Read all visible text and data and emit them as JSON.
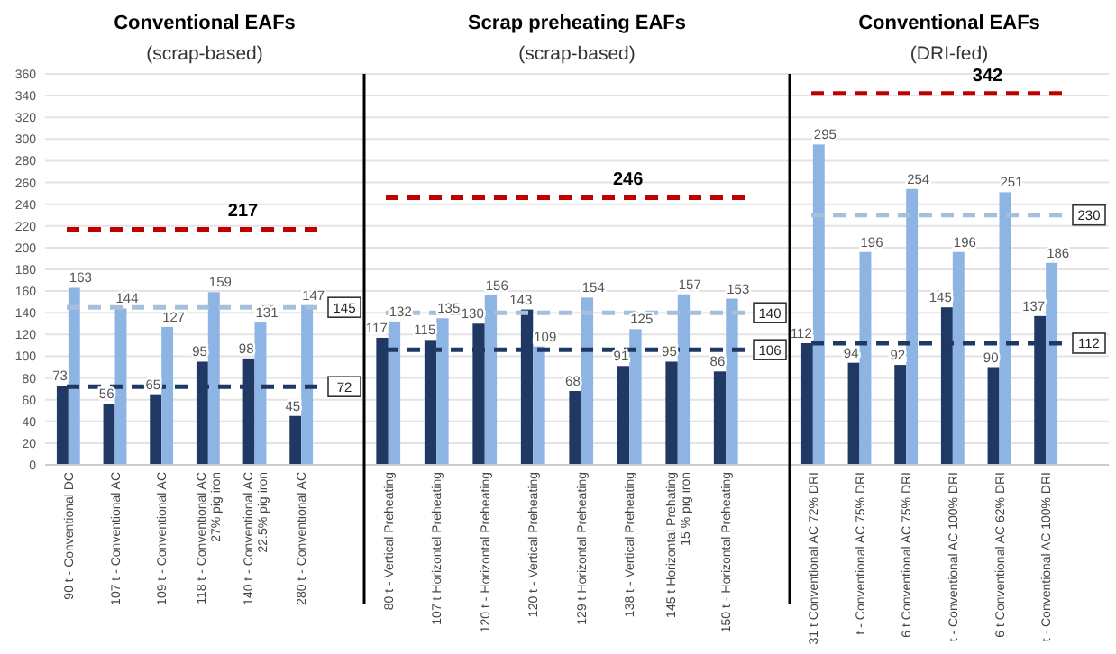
{
  "chart_data": [
    {
      "type": "bar",
      "title": "Conventional EAFs",
      "subtitle": "(scrap-based)",
      "categories": [
        "90 t - Conventional DC",
        "107 t - Conventional AC",
        "109 t - Conventional AC",
        "118 t - Conventional AC\n27% pig iron",
        "140 t - Conventional AC\n22.5% pig iron",
        "280 t - Conventional AC"
      ],
      "series": [
        {
          "color": "#1f3864",
          "values": [
            73,
            56,
            65,
            95,
            98,
            45
          ]
        },
        {
          "color": "#8eb4e3",
          "values": [
            163,
            144,
            127,
            159,
            131,
            147
          ]
        }
      ],
      "ylim": [
        0,
        360
      ],
      "yticks": [
        0,
        20,
        40,
        60,
        80,
        100,
        120,
        140,
        160,
        180,
        200,
        220,
        240,
        260,
        280,
        300,
        320,
        340,
        360
      ],
      "grid": "y",
      "data_labels": true,
      "ref_lines": [
        {
          "axis": "y",
          "value": 217,
          "label": "217",
          "color": "#c00000",
          "line_style": "dashed"
        },
        {
          "axis": "y",
          "value": 145,
          "label": "145",
          "color": "#a6bfdc",
          "line_style": "dashed"
        },
        {
          "axis": "y",
          "value": 72,
          "label": "72",
          "color": "#1f3864",
          "line_style": "dashed"
        }
      ]
    },
    {
      "type": "bar",
      "title": "Scrap preheating EAFs",
      "subtitle": "(scrap-based)",
      "categories": [
        "80 t - Vertical Preheating",
        "107 t Horizontel Preheating",
        "120 t - Horizontal Preheating",
        "120 t - Vertical Preheating",
        "129 t Horizontal Preheating",
        "138 t - Vertical Preheating",
        "145 t Horizontal Prehating\n15 % pig iron",
        "150 t - Horizontal Preheating"
      ],
      "series": [
        {
          "color": "#1f3864",
          "values": [
            117,
            115,
            130,
            143,
            68,
            91,
            95,
            86
          ]
        },
        {
          "color": "#8eb4e3",
          "values": [
            132,
            135,
            156,
            109,
            154,
            125,
            157,
            153
          ]
        }
      ],
      "ylim": [
        0,
        360
      ],
      "yticks": [
        0,
        20,
        40,
        60,
        80,
        100,
        120,
        140,
        160,
        180,
        200,
        220,
        240,
        260,
        280,
        300,
        320,
        340,
        360
      ],
      "grid": "y",
      "data_labels": true,
      "tick_labels": "x",
      "ref_lines": [
        {
          "axis": "y",
          "value": 246,
          "label": "246",
          "color": "#c00000",
          "line_style": "dashed"
        },
        {
          "axis": "y",
          "value": 140,
          "label": "140",
          "color": "#a6bfdc",
          "line_style": "dashed"
        },
        {
          "axis": "y",
          "value": 106,
          "label": "106",
          "color": "#1f3864",
          "line_style": "dashed"
        }
      ]
    },
    {
      "type": "bar",
      "title": "Conventional EAFs",
      "subtitle": "(DRI-fed)",
      "categories": [
        "31 t Conventional AC 72% DRI",
        "t - Conventional AC  75% DRI",
        "6 t Conventional  AC 75% DRI",
        "t - Conventional AC 100% DRI",
        "6 t Conventional AC  62% DRI",
        "t - Conventional AC 100% DRI"
      ],
      "series": [
        {
          "color": "#1f3864",
          "values": [
            112,
            94,
            92,
            145,
            90,
            137
          ]
        },
        {
          "color": "#8eb4e3",
          "values": [
            295,
            196,
            254,
            196,
            251,
            186
          ]
        }
      ],
      "ylim": [
        0,
        360
      ],
      "yticks": [
        0,
        20,
        40,
        60,
        80,
        100,
        120,
        140,
        160,
        180,
        200,
        220,
        240,
        260,
        280,
        300,
        320,
        340,
        360
      ],
      "grid": "y",
      "data_labels": true,
      "tick_labels": "x",
      "ref_lines": [
        {
          "axis": "y",
          "value": 342,
          "label": "342",
          "color": "#c00000",
          "line_style": "dashed"
        },
        {
          "axis": "y",
          "value": 230,
          "label": "230",
          "color": "#a6bfdc",
          "line_style": "dashed"
        },
        {
          "axis": "y",
          "value": 112,
          "label": "112",
          "color": "#1f3864",
          "line_style": "dashed"
        }
      ]
    }
  ]
}
